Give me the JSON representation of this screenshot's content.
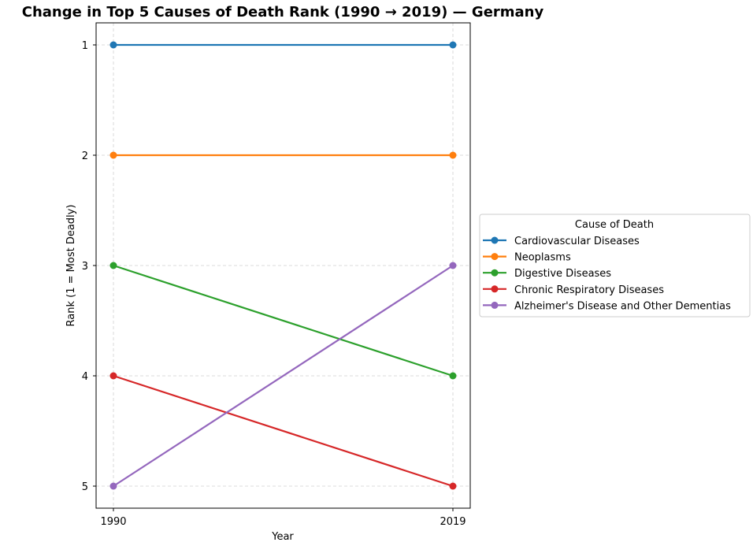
{
  "chart_data": {
    "type": "line",
    "title": "Change in Top 5 Causes of Death Rank (1990 → 2019) — Germany",
    "xlabel": "Year",
    "ylabel": "Rank (1 = Most Deadly)",
    "x": [
      "1990",
      "2019"
    ],
    "ylim": [
      1,
      5
    ],
    "y_inverted": true,
    "yticks": [
      "1",
      "2",
      "3",
      "4",
      "5"
    ],
    "grid": true,
    "legend": {
      "title": "Cause of Death",
      "placement": "right, outside"
    },
    "series": [
      {
        "name": "Cardiovascular Diseases",
        "values": [
          1,
          1
        ],
        "color": "#1f77b4"
      },
      {
        "name": "Neoplasms",
        "values": [
          2,
          2
        ],
        "color": "#ff7f0e"
      },
      {
        "name": "Digestive Diseases",
        "values": [
          3,
          4
        ],
        "color": "#2ca02c"
      },
      {
        "name": "Chronic Respiratory Diseases",
        "values": [
          4,
          5
        ],
        "color": "#d62728"
      },
      {
        "name": "Alzheimer's Disease and Other Dementias",
        "values": [
          5,
          3
        ],
        "color": "#9467bd"
      }
    ]
  }
}
